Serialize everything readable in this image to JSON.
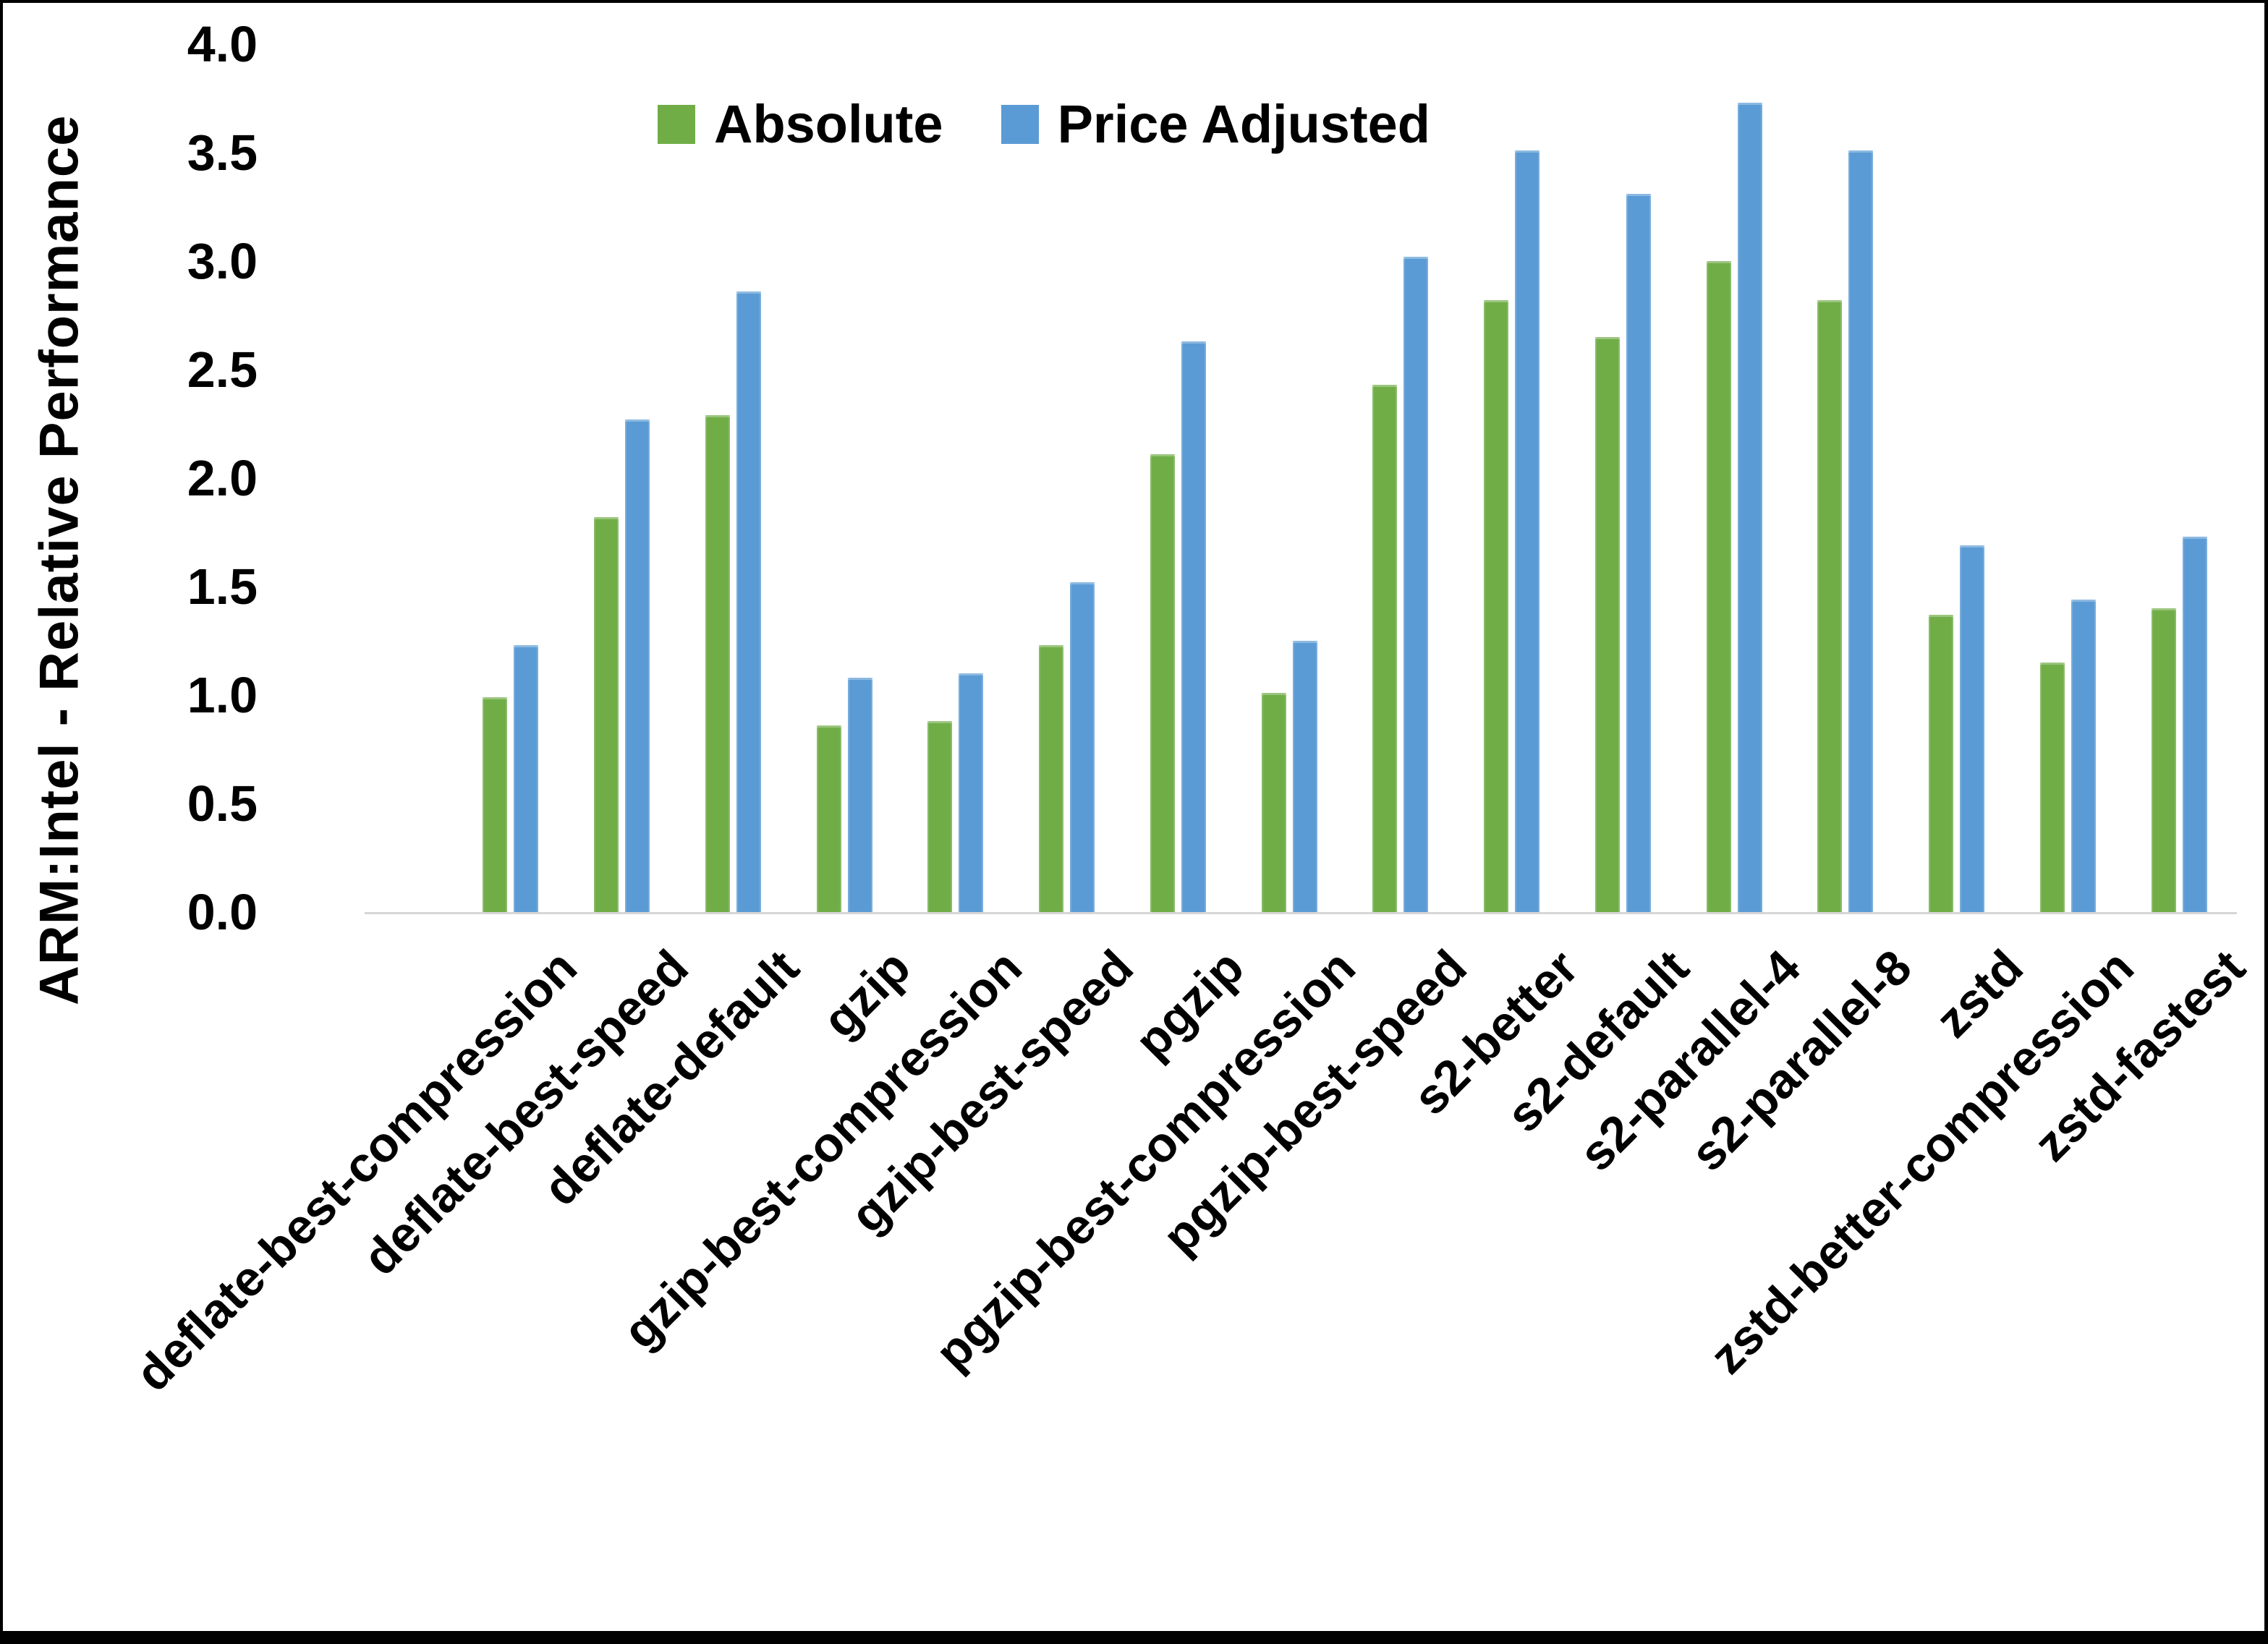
{
  "figure": {
    "ylabel": "ARM:Intel - Relative Performance",
    "ytick_labels": [
      "4.0",
      "3.5",
      "3.0",
      "2.5",
      "2.0",
      "1.5",
      "1.0",
      "0.5",
      "0.0"
    ]
  },
  "chart_data": {
    "type": "bar",
    "title": "",
    "xlabel": "",
    "ylabel": "ARM:Intel - Relative Performance",
    "ylim": [
      0.0,
      4.0
    ],
    "ytick_step": 0.5,
    "grid": false,
    "legend_position": "top-center",
    "background": "#ffffff",
    "categories": [
      "deflate-best-compression",
      "deflate-best-speed",
      "deflate-default",
      "gzip",
      "gzip-best-compression",
      "gzip-best-speed",
      "pgzip",
      "pgzip-best-compression",
      "pgzip-best-speed",
      "s2-better",
      "s2-default",
      "s2-parallel-4",
      "s2-parallel-8",
      "zstd",
      "zstd-better-compression",
      "zstd-fastest"
    ],
    "series": [
      {
        "name": "Absolute",
        "color": "#70AD47",
        "values": [
          0.99,
          1.82,
          2.29,
          0.86,
          0.88,
          1.23,
          2.11,
          1.01,
          2.43,
          2.82,
          2.65,
          3.0,
          2.82,
          1.37,
          1.15,
          1.4
        ]
      },
      {
        "name": "Price Adjusted",
        "color": "#5B9BD5",
        "values": [
          1.23,
          2.27,
          2.86,
          1.08,
          1.1,
          1.52,
          2.63,
          1.25,
          3.02,
          3.51,
          3.31,
          3.73,
          3.51,
          1.69,
          1.44,
          1.73
        ]
      }
    ]
  }
}
